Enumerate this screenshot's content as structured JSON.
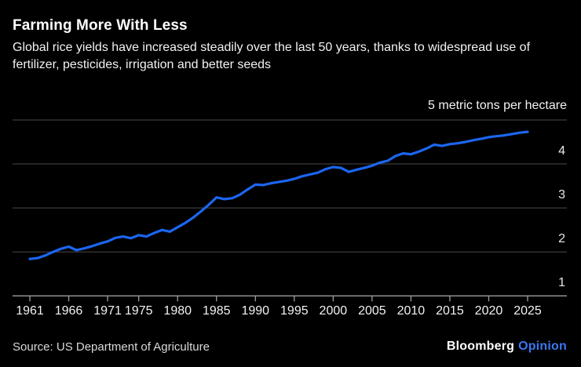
{
  "header": {
    "title": "Farming More With Less",
    "subtitle": "Global rice yields have increased steadily over the last 50 years, thanks to widespread use of fertilizer, pesticides, irrigation and better seeds"
  },
  "chart_data": {
    "type": "line",
    "title": "Farming More With Less",
    "subtitle": "Global rice yields have increased steadily over the last 50 years, thanks to widespread use of fertilizer, pesticides, irrigation and better seeds",
    "unit_label": "5 metric tons per hectare",
    "ylabel": "metric tons per hectare",
    "xlabel": "",
    "xlim": [
      1961,
      2025
    ],
    "ylim": [
      1,
      5
    ],
    "grid": "horizontal",
    "legend": "none",
    "x_tick_labels": [
      1961,
      1966,
      1971,
      1975,
      1980,
      1985,
      1990,
      1995,
      2000,
      2005,
      2010,
      2015,
      2020,
      2025
    ],
    "y_tick_labels": [
      4,
      3,
      2,
      1
    ],
    "y_gridlines": [
      5,
      4,
      3,
      2
    ],
    "x": [
      1961,
      1962,
      1963,
      1964,
      1965,
      1966,
      1967,
      1968,
      1969,
      1970,
      1971,
      1972,
      1973,
      1974,
      1975,
      1976,
      1977,
      1978,
      1979,
      1980,
      1981,
      1982,
      1983,
      1984,
      1985,
      1986,
      1987,
      1988,
      1989,
      1990,
      1991,
      1992,
      1993,
      1994,
      1995,
      1996,
      1997,
      1998,
      1999,
      2000,
      2001,
      2002,
      2003,
      2004,
      2005,
      2006,
      2007,
      2008,
      2009,
      2010,
      2011,
      2012,
      2013,
      2014,
      2015,
      2016,
      2017,
      2018,
      2019,
      2020,
      2021,
      2022,
      2023,
      2024,
      2025
    ],
    "series": [
      {
        "name": "Global rice yield",
        "color": "#1c66f0",
        "values": [
          1.84,
          1.86,
          1.92,
          2.0,
          2.07,
          2.12,
          2.04,
          2.08,
          2.13,
          2.19,
          2.24,
          2.32,
          2.35,
          2.31,
          2.38,
          2.35,
          2.43,
          2.5,
          2.46,
          2.56,
          2.66,
          2.78,
          2.92,
          3.07,
          3.24,
          3.2,
          3.22,
          3.3,
          3.42,
          3.53,
          3.52,
          3.56,
          3.59,
          3.62,
          3.66,
          3.72,
          3.76,
          3.8,
          3.88,
          3.93,
          3.91,
          3.82,
          3.87,
          3.91,
          3.96,
          4.03,
          4.07,
          4.18,
          4.24,
          4.22,
          4.28,
          4.35,
          4.44,
          4.41,
          4.45,
          4.47,
          4.5,
          4.54,
          4.57,
          4.61,
          4.63,
          4.65,
          4.68,
          4.71,
          4.73
        ]
      }
    ],
    "colors": {
      "background": "#000000",
      "line": "#1c66f0",
      "gridline": "#4a4a4a",
      "axis": "#9e9e9e",
      "text": "#f2f2f2"
    }
  },
  "footer": {
    "source": "Source: US Department of Agriculture",
    "brand": "Bloomberg",
    "brand_suffix": "Opinion"
  }
}
